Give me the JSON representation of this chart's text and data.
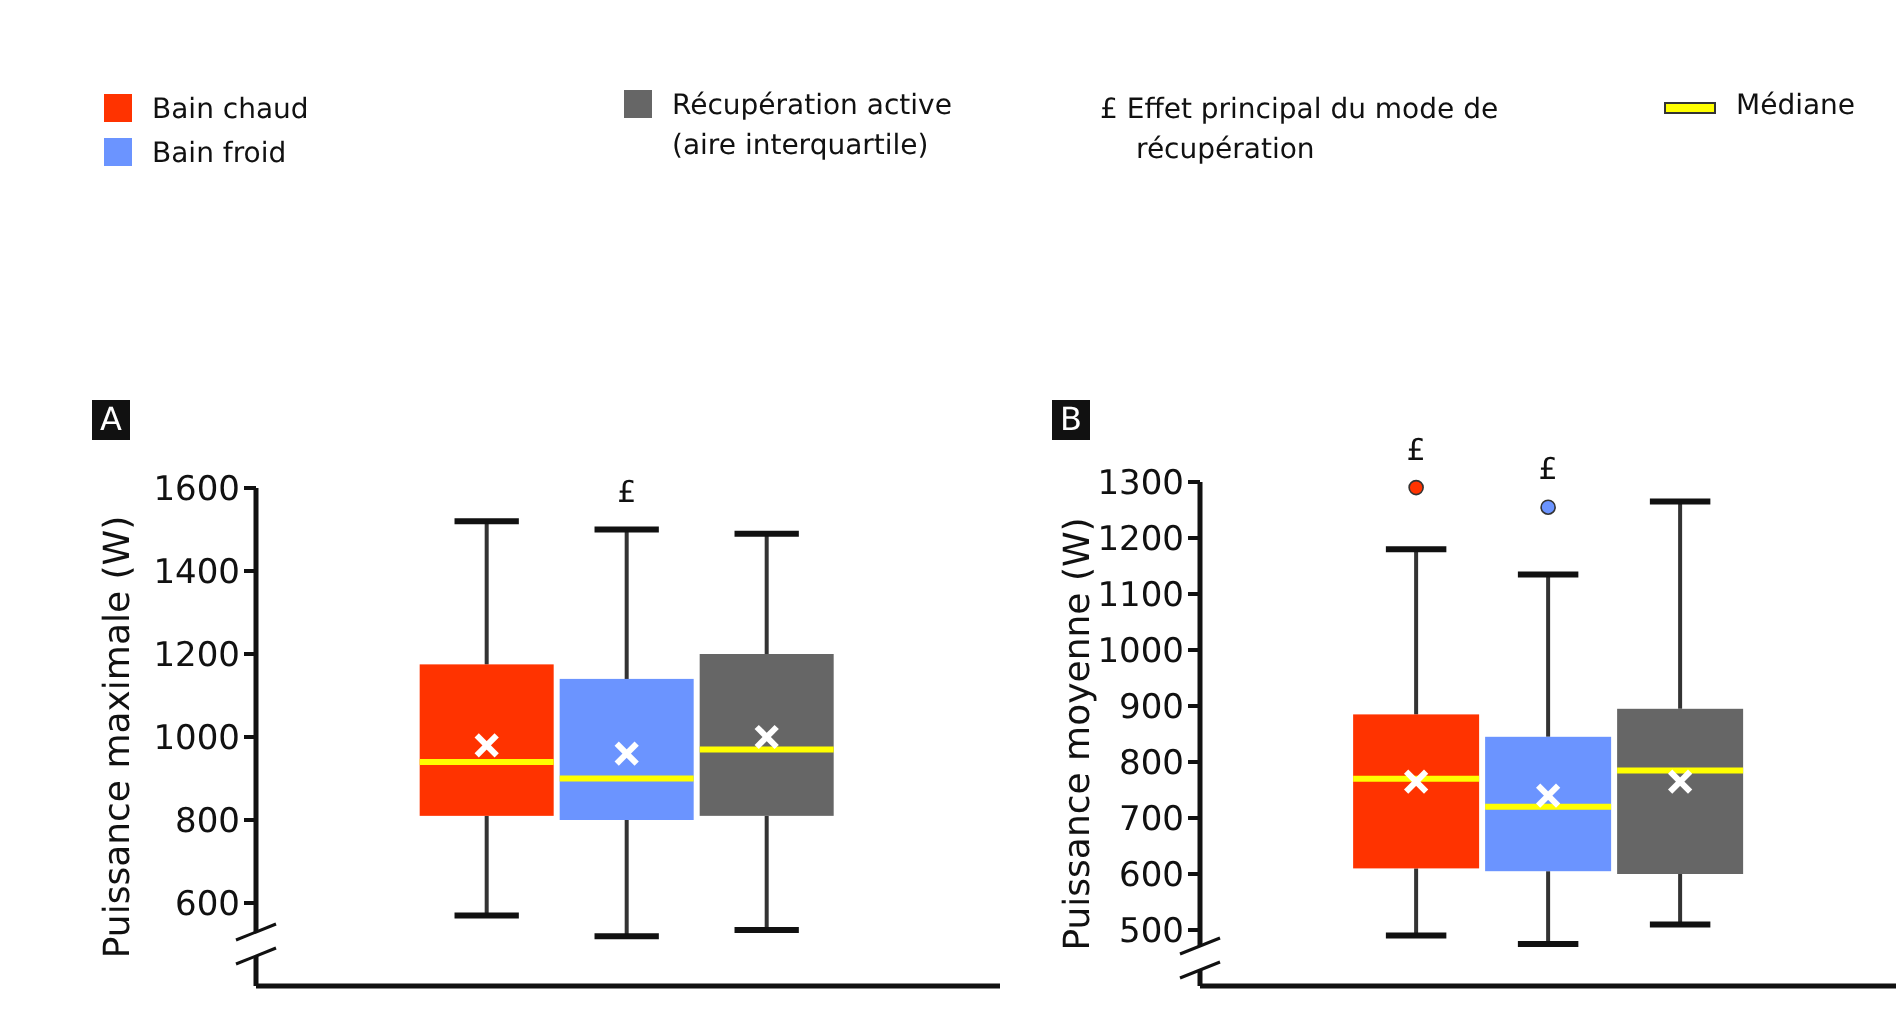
{
  "chart_data": [
    {
      "type": "box",
      "title": "A",
      "ylabel": "Puissance maximale (W)",
      "categories": [
        null
      ],
      "ylim": [
        400,
        1600
      ],
      "yticks": [
        600,
        800,
        1000,
        1200,
        1400,
        1600
      ],
      "legend": "top",
      "annotations": [
        "£ Effet principal du mode de récupération",
        "Médiane"
      ],
      "series": [
        {
          "name": "Bain chaud",
          "color": "#ff3300",
          "boxes": [
            {
              "low": 570,
              "q1": 810,
              "median": 940,
              "q3": 1175,
              "high": 1520,
              "mean": 980
            }
          ]
        },
        {
          "name": "Bain froid",
          "color": "#6b94ff",
          "value_labels": [
            "£"
          ],
          "boxes": [
            {
              "low": 520,
              "q1": 800,
              "median": 900,
              "q3": 1140,
              "high": 1500,
              "mean": 960
            }
          ]
        },
        {
          "name": "Récupération active (aire interquartile)",
          "color": "#666666",
          "boxes": [
            {
              "low": 535,
              "q1": 810,
              "median": 970,
              "q3": 1200,
              "high": 1490,
              "mean": 1000
            }
          ]
        }
      ]
    },
    {
      "type": "box",
      "title": "B",
      "ylabel": "Puissance moyenne (W)",
      "categories": [
        null
      ],
      "ylim": [
        400,
        1300
      ],
      "yticks": [
        500,
        600,
        700,
        800,
        900,
        1000,
        1100,
        1200,
        1300
      ],
      "series": [
        {
          "color": "#ff3300",
          "value_labels": [
            "£"
          ],
          "boxes": [
            {
              "low": 490,
              "q1": 610,
              "median": 770,
              "q3": 885,
              "high": 1180,
              "mean": 765,
              "outliers": [
                1290
              ]
            }
          ]
        },
        {
          "color": "#6b94ff",
          "value_labels": [
            "£"
          ],
          "boxes": [
            {
              "low": 475,
              "q1": 605,
              "median": 720,
              "q3": 845,
              "high": 1135,
              "mean": 740,
              "outliers": [
                1255
              ]
            }
          ]
        },
        {
          "color": "#666666",
          "boxes": [
            {
              "low": 510,
              "q1": 600,
              "median": 785,
              "q3": 895,
              "high": 1265,
              "mean": 765
            }
          ]
        }
      ]
    }
  ]
}
